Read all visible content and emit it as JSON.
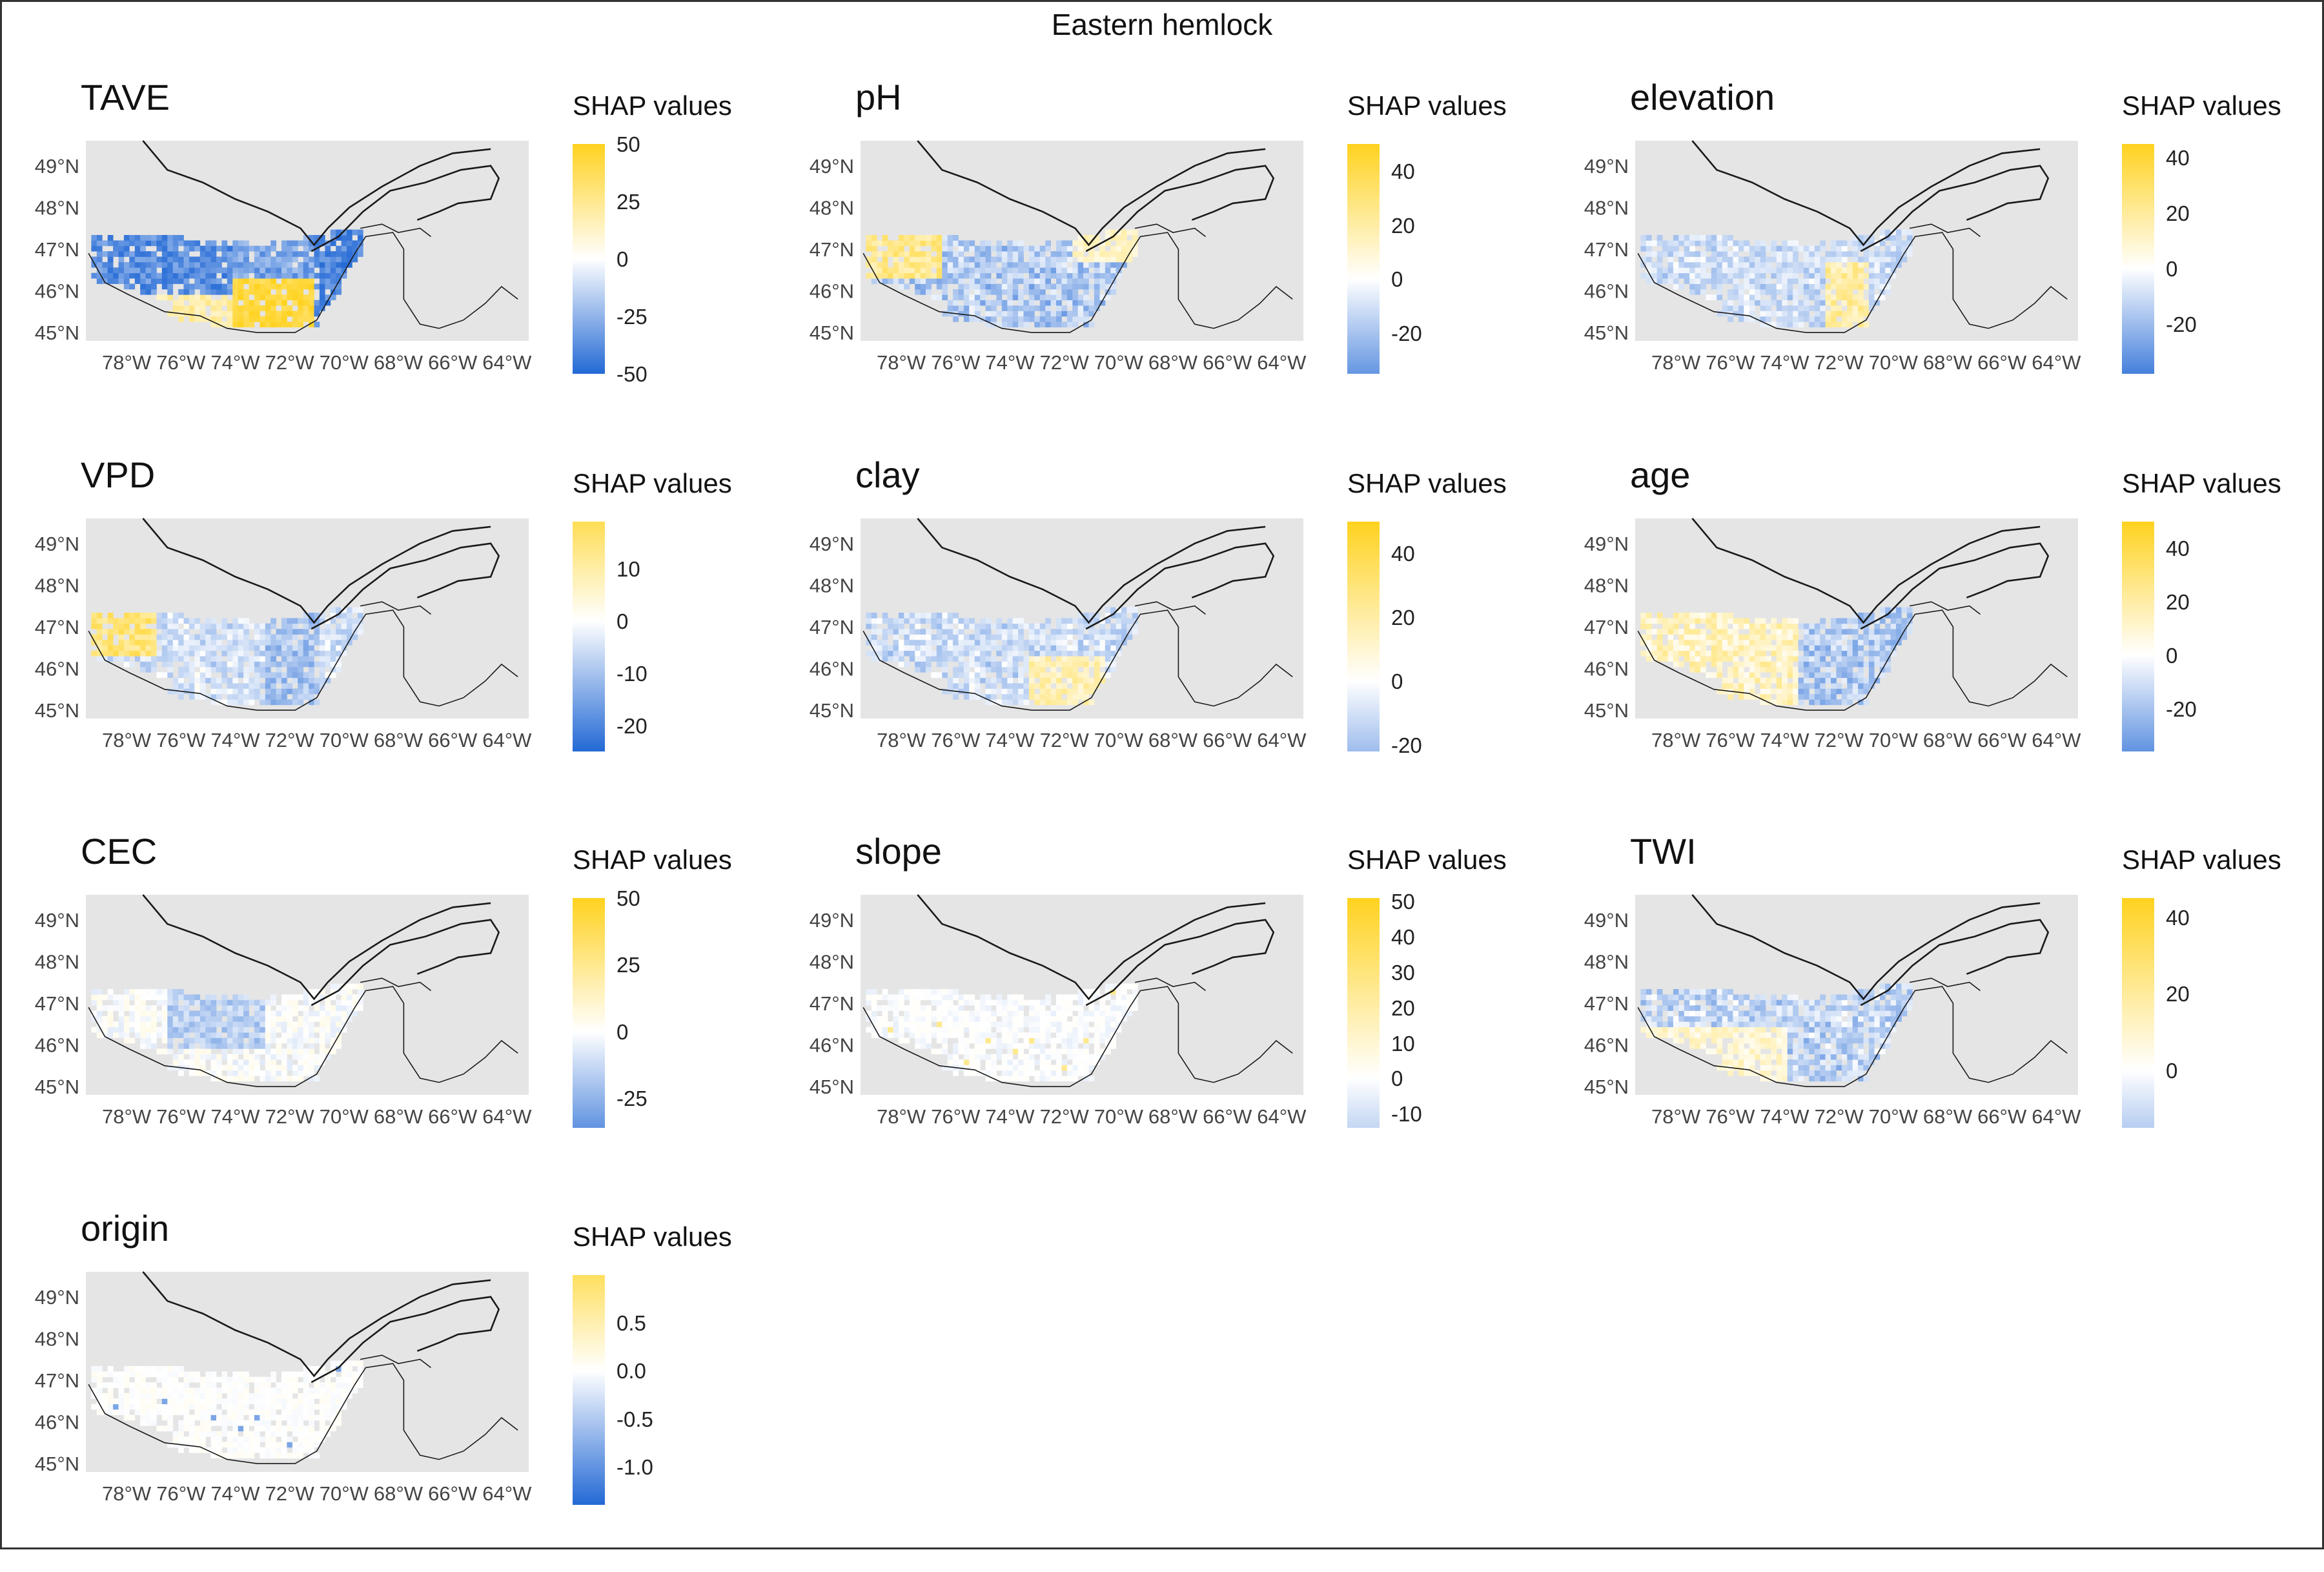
{
  "figure": {
    "title": "Eastern hemlock"
  },
  "axes": {
    "lat_ticks": [
      "49°N",
      "48°N",
      "47°N",
      "46°N",
      "45°N"
    ],
    "lat_values": [
      49,
      48,
      47,
      46,
      45
    ],
    "lon_ticks": [
      "78°W",
      "76°W",
      "74°W",
      "72°W",
      "70°W",
      "68°W",
      "66°W",
      "64°W"
    ],
    "lon_values": [
      -78,
      -76,
      -74,
      -72,
      -70,
      -68,
      -66,
      -64
    ],
    "lat_range": [
      44.8,
      49.6
    ],
    "lon_range": [
      -79.5,
      -63.2
    ]
  },
  "colors": {
    "high": "#FFD21F",
    "mid": "#FFFFFF",
    "low": "#2369D5",
    "land": "#E5E5E5",
    "coast": "#1a1a1a"
  },
  "chart_data": [
    {
      "type": "heatmap",
      "title": "TAVE",
      "legend_title": "SHAP values",
      "scale_range": [
        -50,
        50
      ],
      "legend_ticks": [
        50,
        25,
        0,
        -25,
        -50
      ],
      "legend_tick_labels": [
        "50",
        "25",
        "0",
        "-25",
        "-50"
      ],
      "pattern": "tave"
    },
    {
      "type": "heatmap",
      "title": "pH",
      "legend_title": "SHAP values",
      "scale_range": [
        -35,
        50
      ],
      "legend_ticks": [
        40,
        20,
        0,
        -20
      ],
      "legend_tick_labels": [
        "40",
        "20",
        "0",
        "-20"
      ],
      "pattern": "ph"
    },
    {
      "type": "heatmap",
      "title": "elevation",
      "legend_title": "SHAP values",
      "scale_range": [
        -38,
        45
      ],
      "legend_ticks": [
        40,
        20,
        0,
        -20
      ],
      "legend_tick_labels": [
        "40",
        "20",
        "0",
        "-20"
      ],
      "pattern": "elevation"
    },
    {
      "type": "heatmap",
      "title": "VPD",
      "legend_title": "SHAP values",
      "scale_range": [
        -25,
        19
      ],
      "legend_ticks": [
        10,
        0,
        -10,
        -20
      ],
      "legend_tick_labels": [
        "10",
        "0",
        "-10",
        "-20"
      ],
      "pattern": "vpd"
    },
    {
      "type": "heatmap",
      "title": "clay",
      "legend_title": "SHAP values",
      "scale_range": [
        -22,
        50
      ],
      "legend_ticks": [
        40,
        20,
        0,
        -20
      ],
      "legend_tick_labels": [
        "40",
        "20",
        "0",
        "-20"
      ],
      "pattern": "clay"
    },
    {
      "type": "heatmap",
      "title": "age",
      "legend_title": "SHAP values",
      "scale_range": [
        -36,
        50
      ],
      "legend_ticks": [
        40,
        20,
        0,
        -20
      ],
      "legend_tick_labels": [
        "40",
        "20",
        "0",
        "-20"
      ],
      "pattern": "age"
    },
    {
      "type": "heatmap",
      "title": "CEC",
      "legend_title": "SHAP values",
      "scale_range": [
        -36,
        50
      ],
      "legend_ticks": [
        50,
        25,
        0,
        -25
      ],
      "legend_tick_labels": [
        "50",
        "25",
        "0",
        "-25"
      ],
      "pattern": "cec"
    },
    {
      "type": "heatmap",
      "title": "slope",
      "legend_title": "SHAP values",
      "scale_range": [
        -14,
        51
      ],
      "legend_ticks": [
        50,
        40,
        30,
        20,
        10,
        0,
        -10
      ],
      "legend_tick_labels": [
        "50",
        "40",
        "30",
        "20",
        "10",
        "0",
        "-10"
      ],
      "pattern": "slope"
    },
    {
      "type": "heatmap",
      "title": "TWI",
      "legend_title": "SHAP values",
      "scale_range": [
        -15,
        45
      ],
      "legend_ticks": [
        40,
        20,
        0
      ],
      "legend_tick_labels": [
        "40",
        "20",
        "0"
      ],
      "pattern": "twi"
    },
    {
      "type": "heatmap",
      "title": "origin",
      "legend_title": "SHAP values",
      "scale_range": [
        -1.4,
        1.0
      ],
      "legend_ticks": [
        0.5,
        0.0,
        -0.5,
        -1.0
      ],
      "legend_tick_labels": [
        "0.5",
        "0.0",
        "-0.5",
        "-1.0"
      ],
      "pattern": "origin"
    }
  ]
}
